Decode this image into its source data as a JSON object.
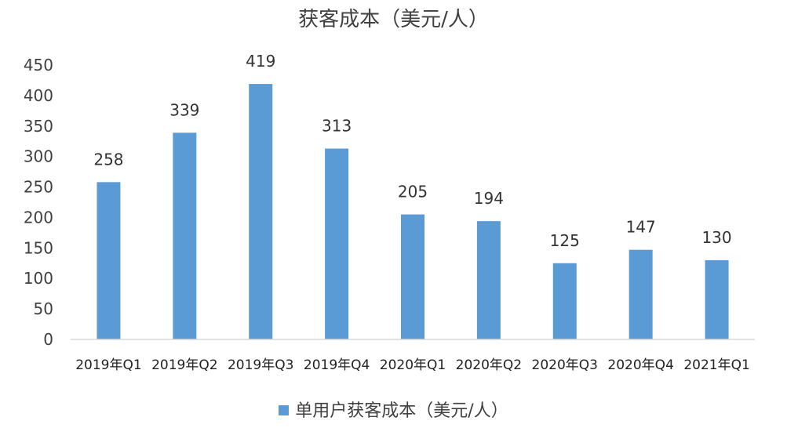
{
  "chart_data": {
    "type": "bar",
    "title": "获客成本（美元/人）",
    "categories": [
      "2019年Q1",
      "2019年Q2",
      "2019年Q3",
      "2019年Q4",
      "2020年Q1",
      "2020年Q2",
      "2020年Q3",
      "2020年Q4",
      "2021年Q1"
    ],
    "series": [
      {
        "name": "单用户获客成本（美元/人）",
        "values": [
          258,
          339,
          419,
          313,
          205,
          194,
          125,
          147,
          130
        ],
        "color": "#5B9BD5"
      }
    ],
    "ylim": [
      0,
      450
    ],
    "yticks": [
      0,
      50,
      100,
      150,
      200,
      250,
      300,
      350,
      400,
      450
    ],
    "grid": false,
    "legend_position": "bottom"
  }
}
